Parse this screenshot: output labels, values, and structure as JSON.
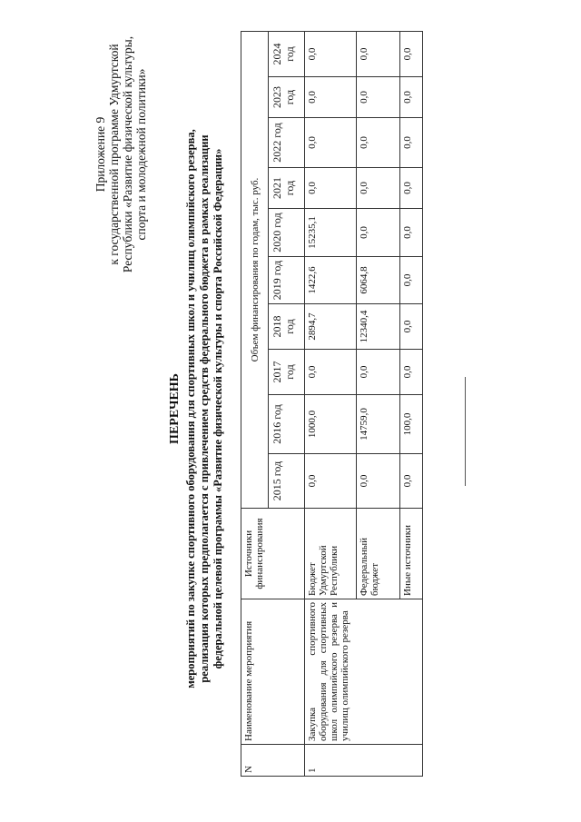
{
  "appendix": {
    "lines": [
      "Приложение 9",
      "к государственной программе Удмуртской",
      "Республики «Развитие физической культуры,",
      "спорта и молодежной политики»"
    ]
  },
  "title": {
    "heading": "ПЕРЕЧЕНЬ",
    "lines": [
      "мероприятий по закупке спортивного оборудования для спортивных школ и училищ олимпийского резерва,",
      "реализация которых предполагается с привлечением средств федерального бюджета в рамках реализации",
      "федеральной целевой программы «Развитие физической культуры и спорта Российской Федерации»"
    ]
  },
  "table": {
    "col_n": "N",
    "col_name": "Наименование мероприятия",
    "col_source": "Источники финансирования",
    "col_group": "Объем финансирования по годам, тыс. руб.",
    "years": [
      "2015 год",
      "2016 год",
      "2017 год",
      "2018 год",
      "2019 год",
      "2020 год",
      "2021 год",
      "2022 год",
      "2023 год",
      "2024 год"
    ],
    "row_n": "1",
    "row_name": "Закупка спортивного оборудования для спортивных школ олимпийского резерва и училищ олимпийского резерва",
    "rows": [
      {
        "source": "Бюджет Удмуртской Республики",
        "values": [
          "0,0",
          "1000,0",
          "0,0",
          "2894,7",
          "1422,6",
          "15235,1",
          "0,0",
          "0,0",
          "0,0",
          "0,0"
        ]
      },
      {
        "source": "Федеральный бюджет",
        "values": [
          "0,0",
          "14759,0",
          "0,0",
          "12340,4",
          "6064,8",
          "0,0",
          "0,0",
          "0,0",
          "0,0",
          "0,0"
        ]
      },
      {
        "source": "Иные источники",
        "values": [
          "0,0",
          "100,0",
          "0,0",
          "0,0",
          "0,0",
          "0,0",
          "0,0",
          "0,0",
          "0,0",
          "0,0"
        ]
      }
    ]
  }
}
